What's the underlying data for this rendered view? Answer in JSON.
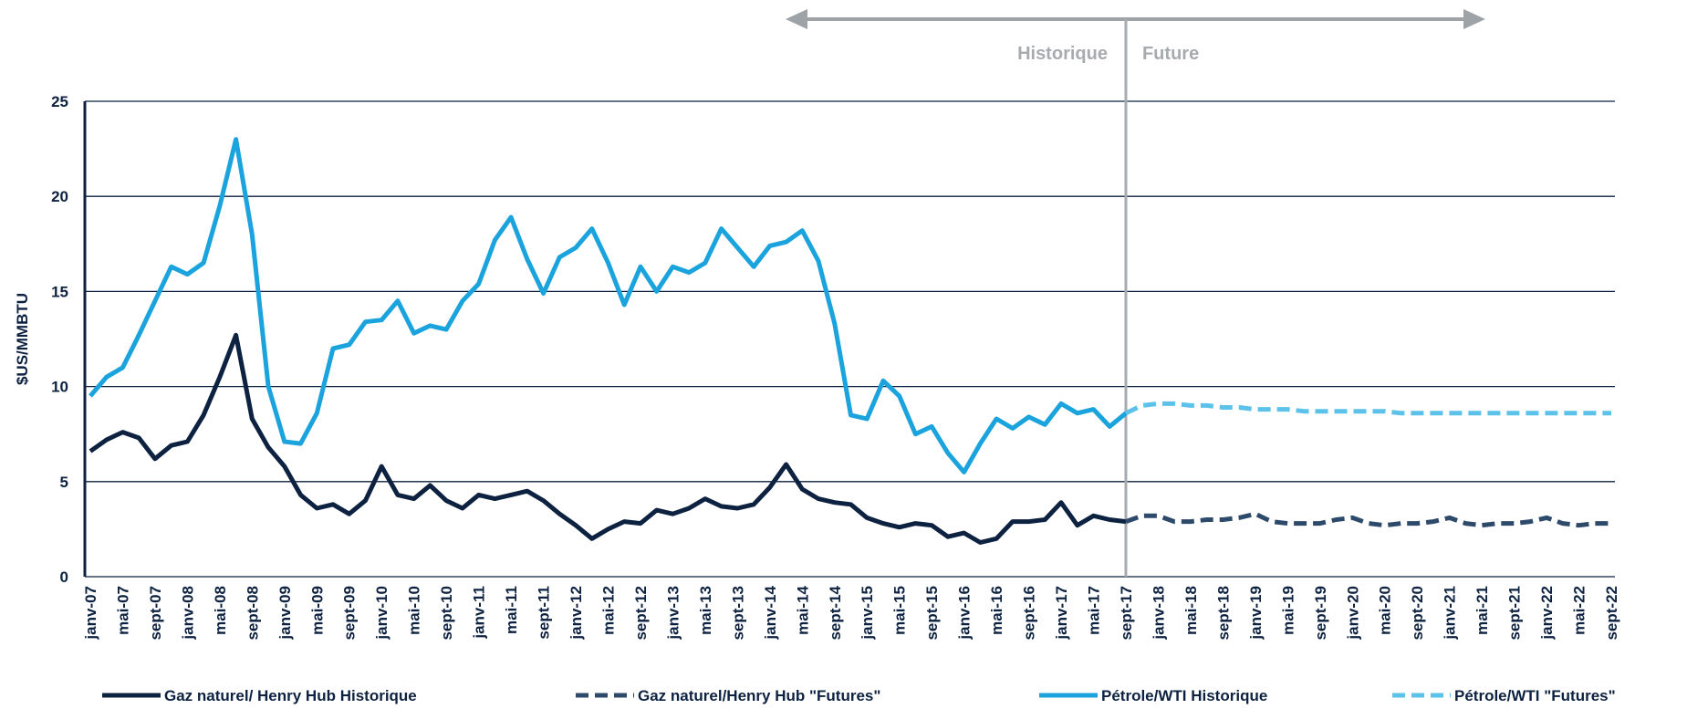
{
  "chart_data": {
    "type": "line",
    "y_label": "$US/MMBTU",
    "annotations": {
      "historical": "Historique",
      "future": "Future"
    },
    "divider_index": 64,
    "categories": [
      "janv-07",
      null,
      "mai-07",
      null,
      "sept-07",
      null,
      "janv-08",
      null,
      "mai-08",
      null,
      "sept-08",
      null,
      "janv-09",
      null,
      "mai-09",
      null,
      "sept-09",
      null,
      "janv-10",
      null,
      "mai-10",
      null,
      "sept-10",
      null,
      "janv-11",
      null,
      "mai-11",
      null,
      "sept-11",
      null,
      "janv-12",
      null,
      "mai-12",
      null,
      "sept-12",
      null,
      "janv-13",
      null,
      "mai-13",
      null,
      "sept-13",
      null,
      "janv-14",
      null,
      "mai-14",
      null,
      "sept-14",
      null,
      "janv-15",
      null,
      "mai-15",
      null,
      "sept-15",
      null,
      "janv-16",
      null,
      "mai-16",
      null,
      "sept-16",
      null,
      "janv-17",
      null,
      "mai-17",
      null,
      "sept-17",
      null,
      "janv-18",
      null,
      "mai-18",
      null,
      "sept-18",
      null,
      "janv-19",
      null,
      "mai-19",
      null,
      "sept-19",
      null,
      "janv-20",
      null,
      "mai-20",
      null,
      "sept-20",
      null,
      "janv-21",
      null,
      "mai-21",
      null,
      "sept-21",
      null,
      "janv-22",
      null,
      "mai-22",
      null,
      "sept-22"
    ],
    "series": [
      {
        "name": "Gaz naturel/ Henry Hub Historique",
        "color": "#0d2240",
        "dashed": false,
        "values": [
          6.6,
          7.2,
          7.6,
          7.3,
          6.2,
          6.9,
          7.1,
          8.5,
          10.5,
          12.7,
          8.3,
          6.8,
          5.8,
          4.3,
          3.6,
          3.8,
          3.3,
          4.0,
          5.8,
          4.3,
          4.1,
          4.8,
          4.0,
          3.6,
          4.3,
          4.1,
          4.3,
          4.5,
          4.0,
          3.3,
          2.7,
          2.0,
          2.5,
          2.9,
          2.8,
          3.5,
          3.3,
          3.6,
          4.1,
          3.7,
          3.6,
          3.8,
          4.7,
          5.9,
          4.6,
          4.1,
          3.9,
          3.8,
          3.1,
          2.8,
          2.6,
          2.8,
          2.7,
          2.1,
          2.3,
          1.8,
          2.0,
          2.9,
          2.9,
          3.0,
          3.9,
          2.7,
          3.2,
          3.0,
          2.9,
          null,
          null,
          null,
          null,
          null,
          null,
          null,
          null,
          null,
          null,
          null,
          null,
          null,
          null,
          null,
          null,
          null,
          null,
          null,
          null,
          null,
          null,
          null,
          null,
          null,
          null,
          null,
          null,
          null,
          null
        ]
      },
      {
        "name": "Gaz naturel/Henry Hub \"Futures\"",
        "color": "#2e4a6b",
        "dashed": true,
        "values": [
          null,
          null,
          null,
          null,
          null,
          null,
          null,
          null,
          null,
          null,
          null,
          null,
          null,
          null,
          null,
          null,
          null,
          null,
          null,
          null,
          null,
          null,
          null,
          null,
          null,
          null,
          null,
          null,
          null,
          null,
          null,
          null,
          null,
          null,
          null,
          null,
          null,
          null,
          null,
          null,
          null,
          null,
          null,
          null,
          null,
          null,
          null,
          null,
          null,
          null,
          null,
          null,
          null,
          null,
          null,
          null,
          null,
          null,
          null,
          null,
          null,
          null,
          null,
          null,
          2.9,
          3.2,
          3.2,
          2.9,
          2.9,
          3.0,
          3.0,
          3.1,
          3.3,
          2.9,
          2.8,
          2.8,
          2.8,
          3.0,
          3.1,
          2.8,
          2.7,
          2.8,
          2.8,
          2.9,
          3.1,
          2.8,
          2.7,
          2.8,
          2.8,
          2.9,
          3.1,
          2.8,
          2.7,
          2.8,
          2.8
        ]
      },
      {
        "name": "Pétrole/WTI Historique",
        "color": "#1aa3dc",
        "dashed": false,
        "values": [
          9.5,
          10.5,
          11.0,
          12.7,
          14.5,
          16.3,
          15.9,
          16.5,
          19.5,
          23.0,
          18.0,
          10.0,
          7.1,
          7.0,
          8.6,
          12.0,
          12.2,
          13.4,
          13.5,
          14.5,
          12.8,
          13.2,
          13.0,
          14.5,
          15.4,
          17.7,
          18.9,
          16.7,
          14.9,
          16.8,
          17.3,
          18.3,
          16.5,
          14.3,
          16.3,
          15.0,
          16.3,
          16.0,
          16.5,
          18.3,
          17.3,
          16.3,
          17.4,
          17.6,
          18.2,
          16.6,
          13.3,
          8.5,
          8.3,
          10.3,
          9.5,
          7.5,
          7.9,
          6.5,
          5.5,
          7.0,
          8.3,
          7.8,
          8.4,
          8.0,
          9.1,
          8.6,
          8.8,
          7.9,
          8.6,
          null,
          null,
          null,
          null,
          null,
          null,
          null,
          null,
          null,
          null,
          null,
          null,
          null,
          null,
          null,
          null,
          null,
          null,
          null,
          null,
          null,
          null,
          null,
          null,
          null,
          null,
          null,
          null,
          null,
          null
        ]
      },
      {
        "name": "Pétrole/WTI \"Futures\"",
        "color": "#5cc2ea",
        "dashed": true,
        "values": [
          null,
          null,
          null,
          null,
          null,
          null,
          null,
          null,
          null,
          null,
          null,
          null,
          null,
          null,
          null,
          null,
          null,
          null,
          null,
          null,
          null,
          null,
          null,
          null,
          null,
          null,
          null,
          null,
          null,
          null,
          null,
          null,
          null,
          null,
          null,
          null,
          null,
          null,
          null,
          null,
          null,
          null,
          null,
          null,
          null,
          null,
          null,
          null,
          null,
          null,
          null,
          null,
          null,
          null,
          null,
          null,
          null,
          null,
          null,
          null,
          null,
          null,
          null,
          null,
          8.6,
          9.0,
          9.1,
          9.1,
          9.0,
          9.0,
          8.9,
          8.9,
          8.8,
          8.8,
          8.8,
          8.7,
          8.7,
          8.7,
          8.7,
          8.7,
          8.7,
          8.6,
          8.6,
          8.6,
          8.6,
          8.6,
          8.6,
          8.6,
          8.6,
          8.6,
          8.6,
          8.6,
          8.6,
          8.6,
          8.6
        ]
      }
    ],
    "ylim": [
      0,
      25
    ],
    "yticks": [
      0,
      5,
      10,
      15,
      20,
      25
    ],
    "grid": true
  }
}
